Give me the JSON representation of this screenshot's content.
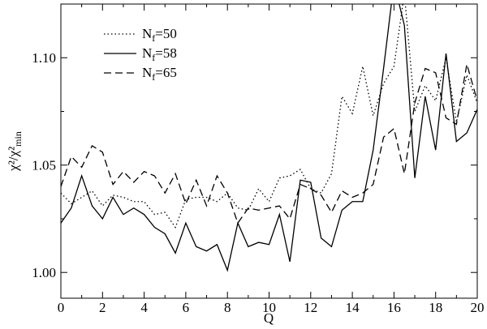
{
  "chart_data": {
    "type": "line",
    "xlabel": "Q",
    "ylabel": "χ²/χ²min",
    "x": [
      0,
      0.5,
      1,
      1.5,
      2,
      2.5,
      3,
      3.5,
      4,
      4.5,
      5,
      5.5,
      6,
      6.5,
      7,
      7.5,
      8,
      8.5,
      9,
      9.5,
      10,
      10.5,
      11,
      11.5,
      12,
      12.5,
      13,
      13.5,
      14,
      14.5,
      15,
      15.5,
      16,
      16.5,
      17,
      17.5,
      18,
      18.5,
      19,
      19.5,
      20
    ],
    "series": [
      {
        "name": "Nf=50",
        "color": "#000000",
        "dash": "dotted",
        "values": [
          1.037,
          1.032,
          1.035,
          1.038,
          1.031,
          1.036,
          1.035,
          1.033,
          1.033,
          1.027,
          1.028,
          1.021,
          1.034,
          1.035,
          1.035,
          1.033,
          1.037,
          1.03,
          1.029,
          1.039,
          1.033,
          1.044,
          1.045,
          1.048,
          1.039,
          1.037,
          1.046,
          1.082,
          1.074,
          1.096,
          1.073,
          1.088,
          1.096,
          1.13,
          1.075,
          1.087,
          1.08,
          1.1,
          1.07,
          1.092,
          1.079
        ]
      },
      {
        "name": "Nf=58",
        "color": "#000000",
        "dash": "solid",
        "values": [
          1.023,
          1.03,
          1.045,
          1.031,
          1.025,
          1.035,
          1.027,
          1.03,
          1.027,
          1.021,
          1.018,
          1.009,
          1.023,
          1.012,
          1.01,
          1.013,
          1.001,
          1.023,
          1.012,
          1.014,
          1.013,
          1.027,
          1.005,
          1.043,
          1.042,
          1.016,
          1.012,
          1.029,
          1.033,
          1.033,
          1.057,
          1.095,
          1.135,
          1.115,
          1.044,
          1.082,
          1.057,
          1.102,
          1.061,
          1.065,
          1.076
        ]
      },
      {
        "name": "Nf=65",
        "color": "#000000",
        "dash": "dashed",
        "values": [
          1.04,
          1.054,
          1.049,
          1.059,
          1.056,
          1.041,
          1.047,
          1.042,
          1.047,
          1.045,
          1.037,
          1.046,
          1.032,
          1.043,
          1.031,
          1.045,
          1.037,
          1.023,
          1.03,
          1.029,
          1.03,
          1.031,
          1.025,
          1.041,
          1.039,
          1.036,
          1.028,
          1.038,
          1.035,
          1.037,
          1.041,
          1.063,
          1.067,
          1.046,
          1.079,
          1.095,
          1.093,
          1.072,
          1.069,
          1.097,
          1.08
        ]
      }
    ],
    "xlim": [
      0,
      20
    ],
    "xticks": [
      0,
      2,
      4,
      6,
      8,
      10,
      12,
      14,
      16,
      18,
      20
    ],
    "ylim": [
      0.988,
      1.125
    ],
    "yticks": [
      {
        "value": 1.0,
        "label": "1.00"
      },
      {
        "value": 1.05,
        "label": "1.05"
      },
      {
        "value": 1.1,
        "label": "1.10"
      }
    ],
    "grid": false,
    "legend": "upper left"
  }
}
